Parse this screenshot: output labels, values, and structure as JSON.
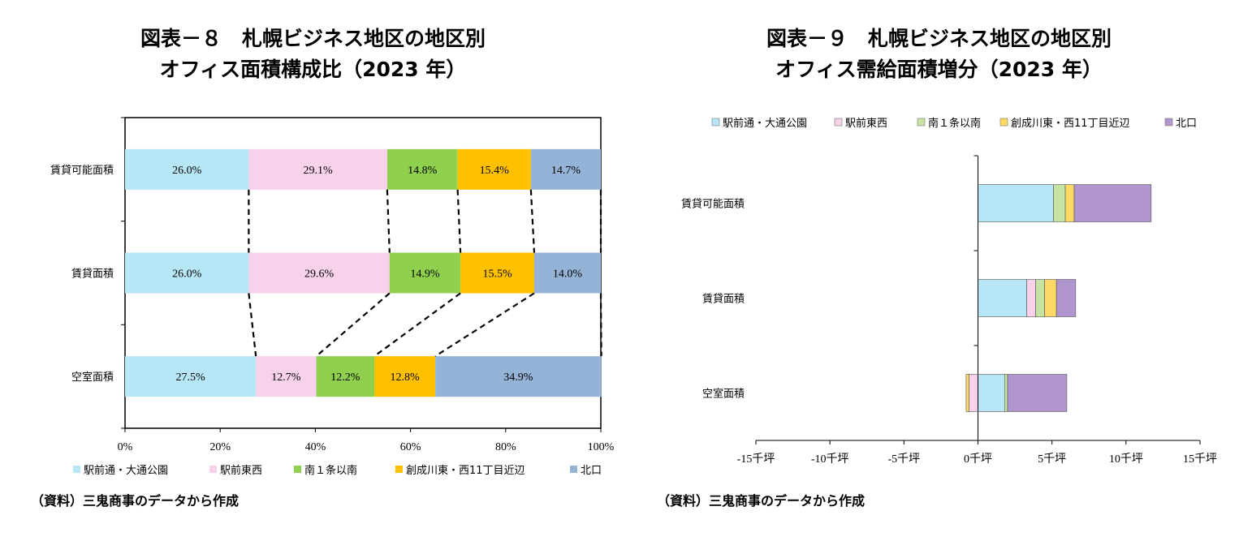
{
  "left": {
    "title_line1": "図表－８　札幌ビジネス地区の地区別",
    "title_line2": "オフィス面積構成比（2023 年）",
    "source": "（資料）三鬼商事のデータから作成"
  },
  "right": {
    "title_line1": "図表－９　札幌ビジネス地区の地区別",
    "title_line2": "オフィス需給面積増分（2023 年）",
    "source": "（資料）三鬼商事のデータから作成"
  },
  "colors": [
    "#b7e6f6",
    "#f8d2ea",
    "#8fd04e",
    "#ffc000",
    "#95b3d7"
  ],
  "colors_right": [
    "#b7e6f6",
    "#f8d2ea",
    "#c6e3a4",
    "#ffd966",
    "#b195cf"
  ],
  "chart_data": [
    {
      "type": "bar",
      "stacked": "percent",
      "orientation": "horizontal",
      "categories": [
        "賃貸可能面積",
        "賃貸面積",
        "空室面積"
      ],
      "series": [
        {
          "name": "駅前通・大通公園",
          "values": [
            26.0,
            26.0,
            27.5
          ],
          "labels": [
            "26.0%",
            "26.0%",
            "27.5%"
          ]
        },
        {
          "name": "駅前東西",
          "values": [
            29.1,
            29.6,
            12.7
          ],
          "labels": [
            "29.1%",
            "29.6%",
            "12.7%"
          ]
        },
        {
          "name": "南１条以南",
          "values": [
            14.8,
            14.9,
            12.2
          ],
          "labels": [
            "14.8%",
            "14.9%",
            "12.2%"
          ]
        },
        {
          "name": "創成川東・西11丁目近辺",
          "values": [
            15.4,
            15.5,
            12.8
          ],
          "labels": [
            "15.4%",
            "15.5%",
            "12.8%"
          ]
        },
        {
          "name": "北口",
          "values": [
            14.7,
            14.0,
            34.9
          ],
          "labels": [
            "14.7%",
            "14.0%",
            "34.9%"
          ]
        }
      ],
      "xlim": [
        0,
        100
      ],
      "xticks": [
        "0%",
        "20%",
        "40%",
        "60%",
        "80%",
        "100%"
      ],
      "legend": "bottom",
      "grid": false
    },
    {
      "type": "bar",
      "stacked": true,
      "orientation": "horizontal",
      "categories": [
        "賃貸可能面積",
        "賃貸面積",
        "空室面積"
      ],
      "series": [
        {
          "name": "駅前通・大通公園",
          "values": [
            5.1,
            3.3,
            1.8
          ]
        },
        {
          "name": "駅前東西",
          "values": [
            0,
            0.6,
            -0.6
          ]
        },
        {
          "name": "南１条以南",
          "values": [
            0.8,
            0.6,
            0.2
          ]
        },
        {
          "name": "創成川東・西11丁目近辺",
          "values": [
            0.6,
            0.8,
            -0.2
          ]
        },
        {
          "name": "北口",
          "values": [
            5.2,
            1.3,
            4.0
          ]
        }
      ],
      "xlim": [
        -15,
        15
      ],
      "xticks": [
        "-15千坪",
        "-10千坪",
        "-5千坪",
        "0千坪",
        "5千坪",
        "10千坪",
        "15千坪"
      ],
      "legend": "top",
      "grid": false
    }
  ]
}
